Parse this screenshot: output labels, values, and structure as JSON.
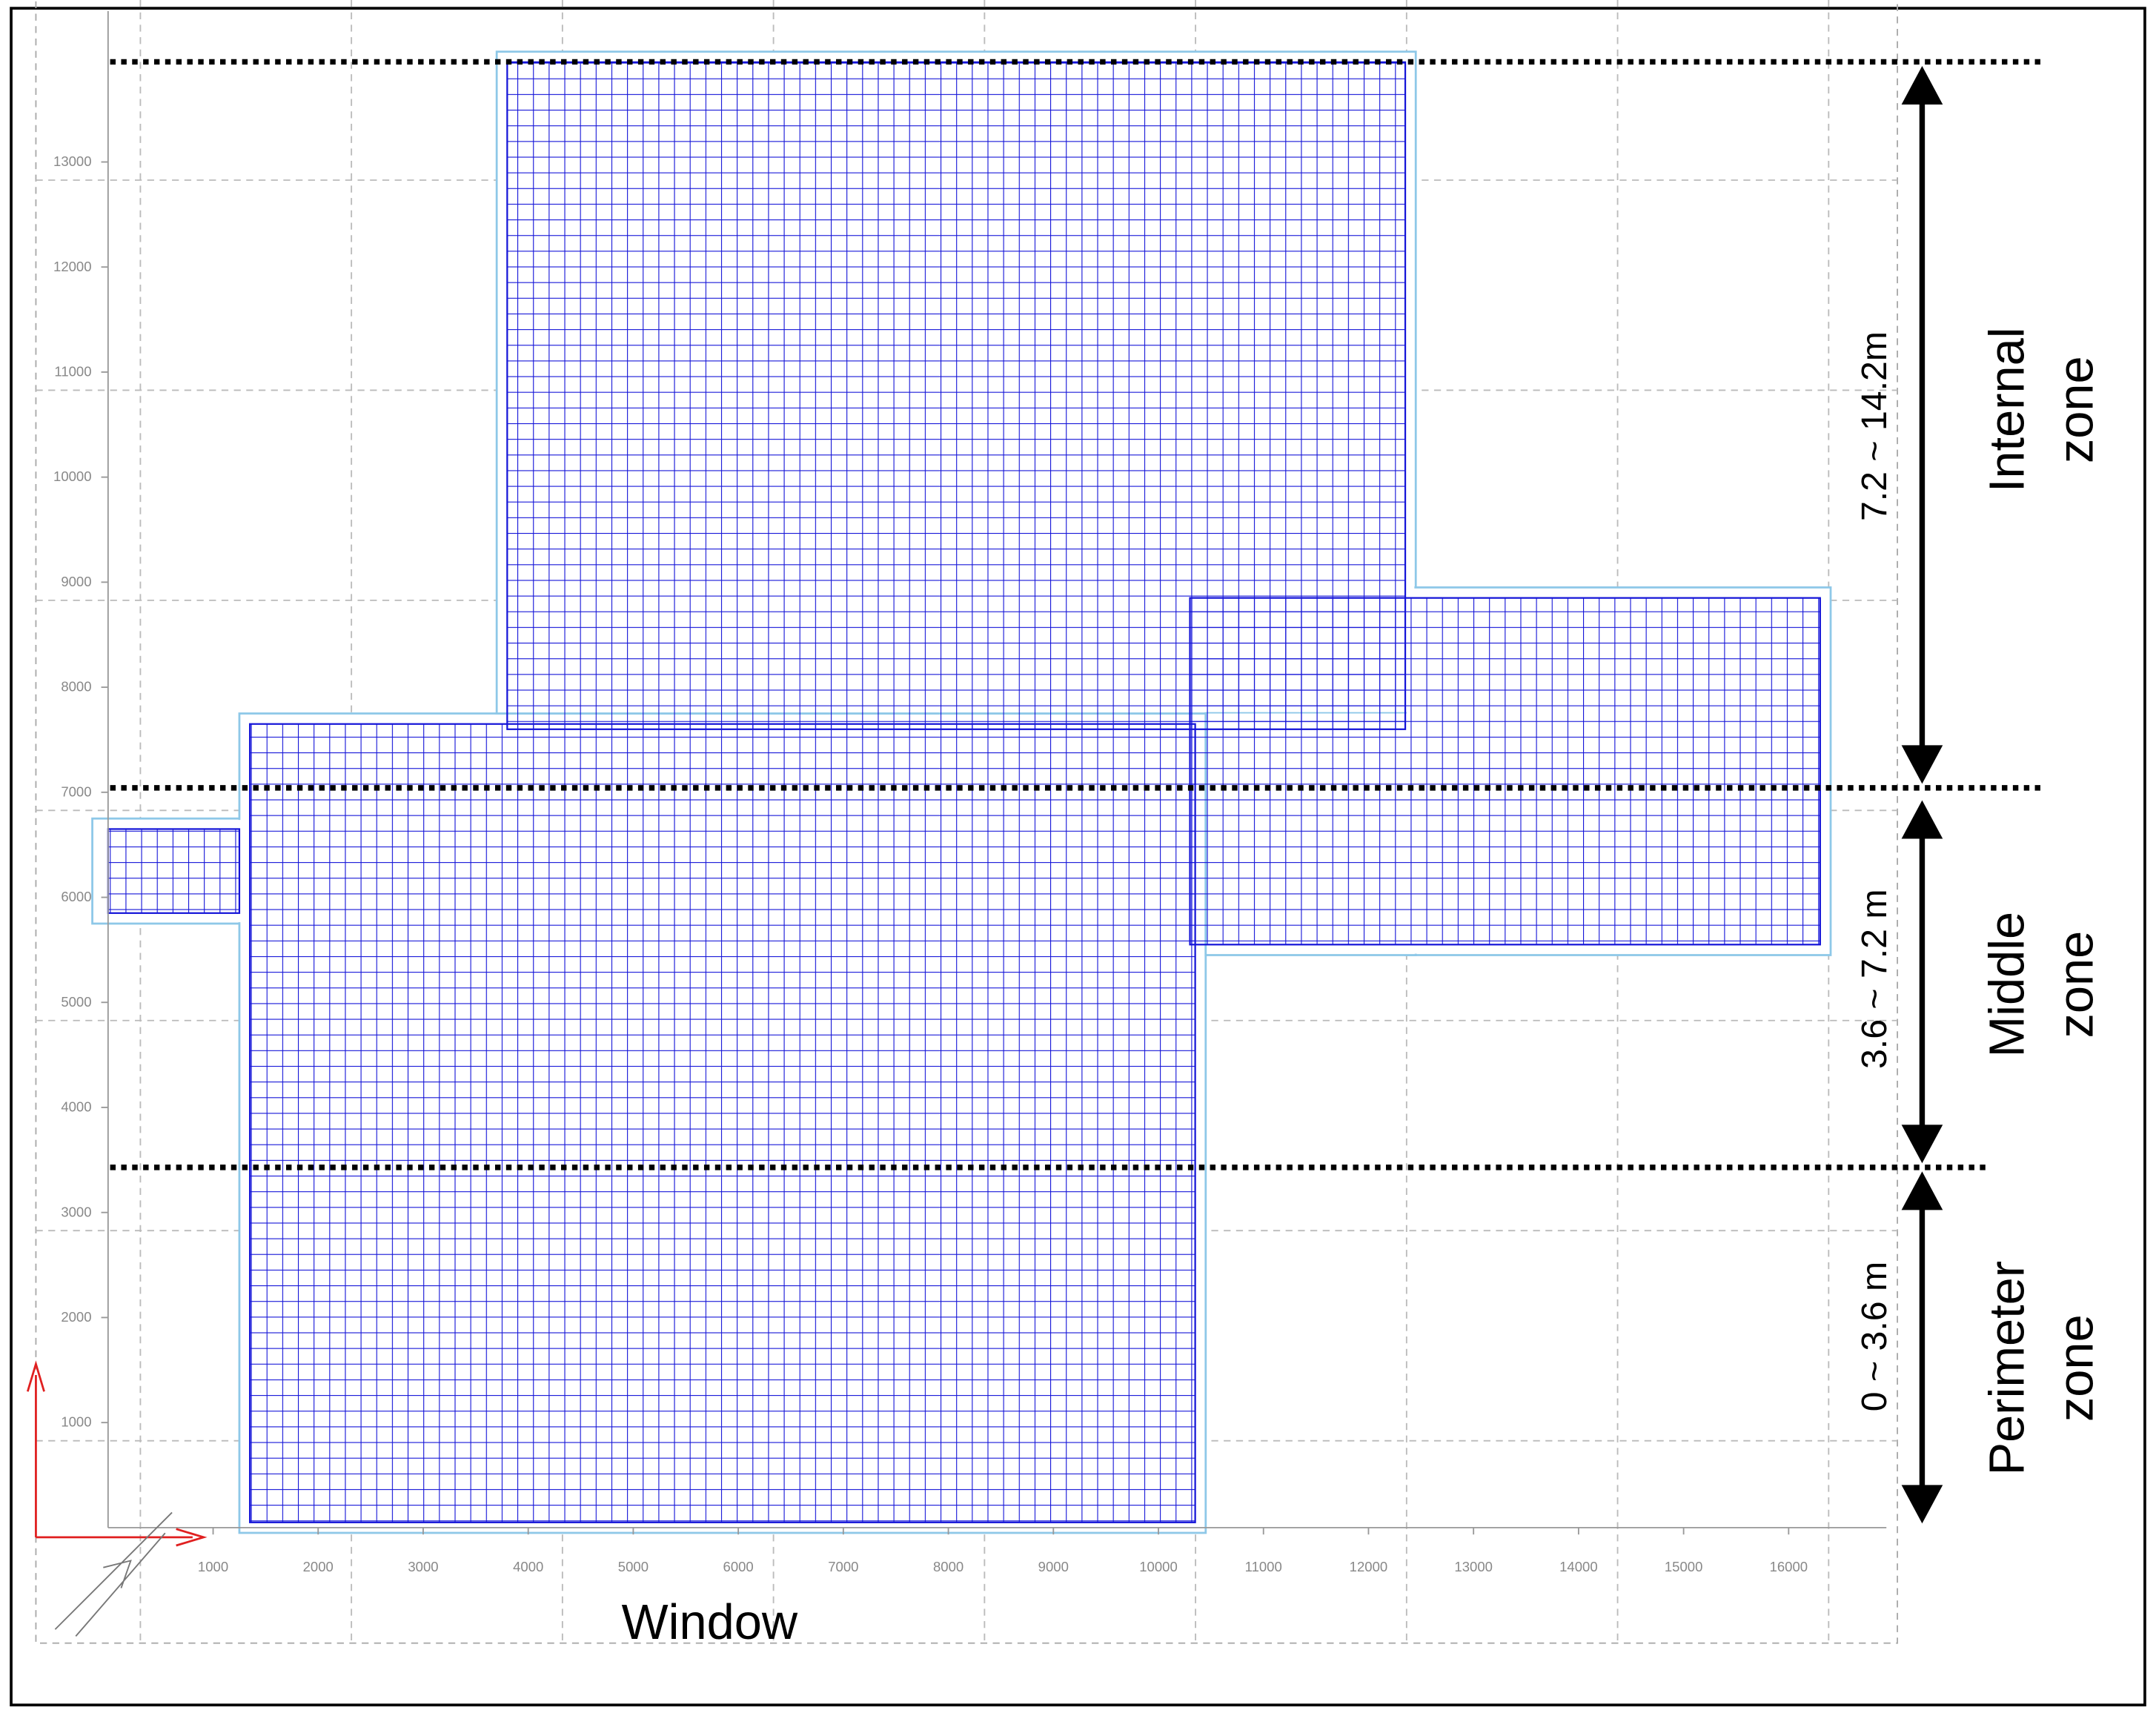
{
  "x_axis": {
    "ticks": [
      1000,
      2000,
      3000,
      4000,
      5000,
      6000,
      7000,
      8000,
      9000,
      10000,
      11000,
      12000,
      13000,
      14000,
      15000,
      16000
    ]
  },
  "y_axis": {
    "ticks": [
      1000,
      2000,
      3000,
      4000,
      5000,
      6000,
      7000,
      8000,
      9000,
      10000,
      11000,
      12000,
      13000
    ]
  },
  "zones": [
    {
      "range": "7.2 ~ 14.2m",
      "name": [
        "Internal",
        "zone"
      ]
    },
    {
      "range": "3.6 ~ 7.2 m",
      "name": [
        "Middle",
        "zone"
      ]
    },
    {
      "range": "0 ~ 3.6 m",
      "name": [
        "Perimeter",
        "zone"
      ]
    }
  ],
  "window_label": "Window"
}
